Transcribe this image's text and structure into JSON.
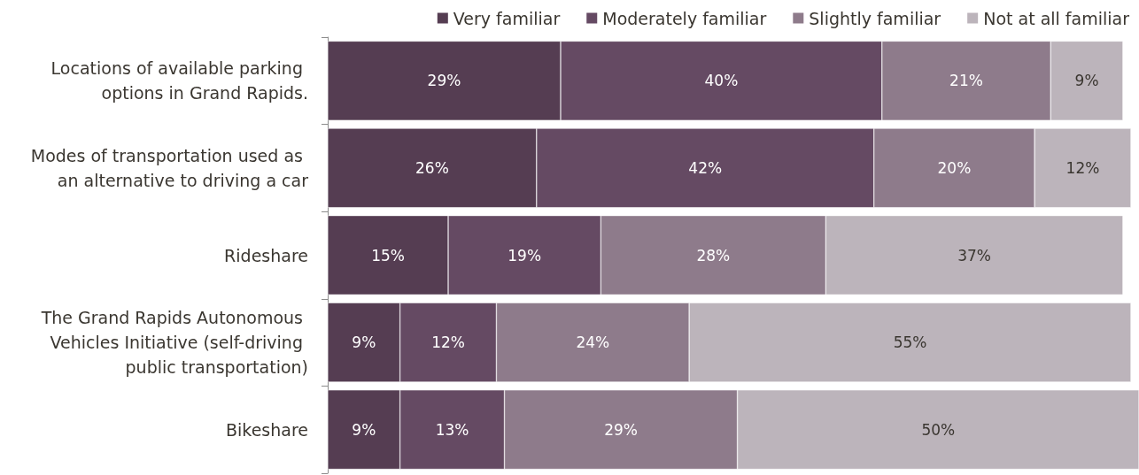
{
  "chart_data": {
    "type": "bar",
    "orientation": "horizontal",
    "stacked": true,
    "legend": "top",
    "categories": [
      "Locations of available parking options in Grand Rapids.",
      "Modes of transportation used as an alternative to driving a car",
      "Rideshare",
      "The Grand Rapids Autonomous Vehicles Initiative (self-driving public transportation)",
      "Bikeshare"
    ],
    "series": [
      {
        "name": "Very familiar",
        "color": "#553d52",
        "values": [
          29,
          26,
          15,
          9,
          9
        ],
        "value_labels": [
          "29%",
          "26%",
          "15%",
          "9%",
          "9%"
        ]
      },
      {
        "name": "Moderately familiar",
        "color": "#654a63",
        "values": [
          40,
          42,
          19,
          12,
          13
        ],
        "value_labels": [
          "40%",
          "42%",
          "19%",
          "12%",
          "13%"
        ]
      },
      {
        "name": "Slightly familiar",
        "color": "#8e7b8b",
        "values": [
          21,
          20,
          28,
          24,
          29
        ],
        "value_labels": [
          "21%",
          "20%",
          "28%",
          "24%",
          "29%"
        ]
      },
      {
        "name": "Not at all familiar",
        "color": "#bcb4bb",
        "values": [
          9,
          12,
          37,
          55,
          50
        ],
        "value_labels": [
          "9%",
          "12%",
          "37%",
          "55%",
          "50%"
        ]
      }
    ]
  }
}
